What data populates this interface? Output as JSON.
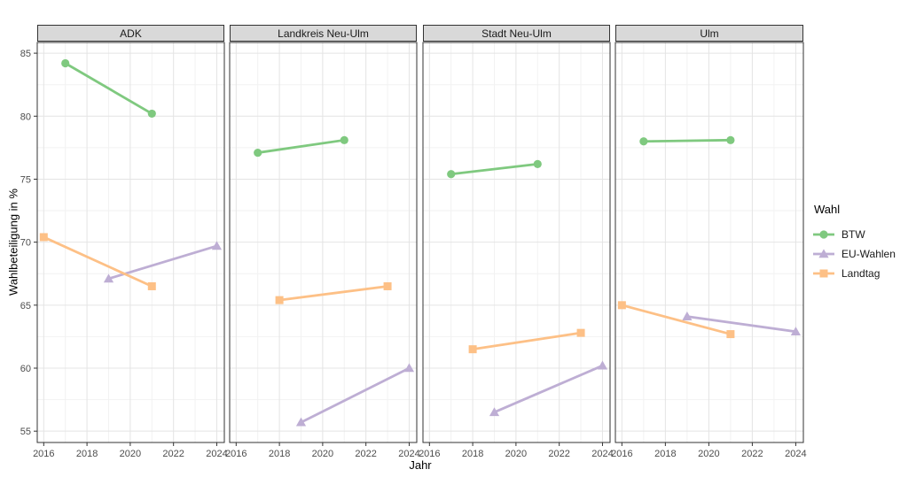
{
  "chart_data": {
    "type": "line",
    "title": "",
    "xlabel": "Jahr",
    "ylabel": "Wahlbeteiligung in %",
    "x_ticks": [
      2016,
      2018,
      2020,
      2022,
      2024
    ],
    "y_ticks": [
      55,
      60,
      65,
      70,
      75,
      80,
      85
    ],
    "xlim": [
      2015.7,
      2024.35
    ],
    "ylim": [
      54.1,
      85.85
    ],
    "grid": true,
    "legend_title": "Wahl",
    "legend_position": "right",
    "facets": [
      {
        "label": "ADK",
        "series": [
          {
            "name": "BTW",
            "points": [
              [
                2017,
                84.2
              ],
              [
                2021,
                80.2
              ]
            ]
          },
          {
            "name": "EU-Wahlen",
            "points": [
              [
                2019,
                67.1
              ],
              [
                2024,
                69.7
              ]
            ]
          },
          {
            "name": "Landtag",
            "points": [
              [
                2016,
                70.4
              ],
              [
                2021,
                66.5
              ]
            ]
          }
        ]
      },
      {
        "label": "Landkreis Neu-Ulm",
        "series": [
          {
            "name": "BTW",
            "points": [
              [
                2017,
                77.1
              ],
              [
                2021,
                78.1
              ]
            ]
          },
          {
            "name": "EU-Wahlen",
            "points": [
              [
                2019,
                55.7
              ],
              [
                2024,
                60.0
              ]
            ]
          },
          {
            "name": "Landtag",
            "points": [
              [
                2018,
                65.4
              ],
              [
                2023,
                66.5
              ]
            ]
          }
        ]
      },
      {
        "label": "Stadt Neu-Ulm",
        "series": [
          {
            "name": "BTW",
            "points": [
              [
                2017,
                75.4
              ],
              [
                2021,
                76.2
              ]
            ]
          },
          {
            "name": "EU-Wahlen",
            "points": [
              [
                2019,
                56.5
              ],
              [
                2024,
                60.2
              ]
            ]
          },
          {
            "name": "Landtag",
            "points": [
              [
                2018,
                61.5
              ],
              [
                2023,
                62.8
              ]
            ]
          }
        ]
      },
      {
        "label": "Ulm",
        "series": [
          {
            "name": "BTW",
            "points": [
              [
                2017,
                78.0
              ],
              [
                2021,
                78.1
              ]
            ]
          },
          {
            "name": "EU-Wahlen",
            "points": [
              [
                2019,
                64.1
              ],
              [
                2024,
                62.9
              ]
            ]
          },
          {
            "name": "Landtag",
            "points": [
              [
                2016,
                65.0
              ],
              [
                2021,
                62.7
              ]
            ]
          }
        ]
      }
    ],
    "series_styles": [
      {
        "name": "BTW",
        "color": "#7FC97F",
        "marker": "circle"
      },
      {
        "name": "EU-Wahlen",
        "color": "#BEAED4",
        "marker": "triangle"
      },
      {
        "name": "Landtag",
        "color": "#FDC086",
        "marker": "square"
      }
    ],
    "colors": {
      "grid_major": "#E4E4E4",
      "grid_minor": "#F2F2F2",
      "panel_border": "#333333",
      "strip_bg": "#D9D9D9",
      "tick_mark": "#333333",
      "tick_text": "#4D4D4D"
    }
  }
}
